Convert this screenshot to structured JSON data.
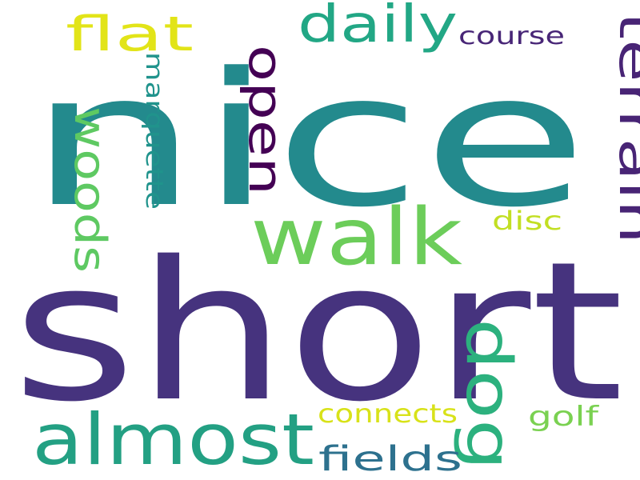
{
  "words": [
    {
      "id": "nice",
      "text": "nice",
      "color": "#238a8d",
      "vertical": false
    },
    {
      "id": "short",
      "text": "short",
      "color": "#46337e",
      "vertical": false
    },
    {
      "id": "walk",
      "text": "walk",
      "color": "#6ccd5a",
      "vertical": false
    },
    {
      "id": "almost",
      "text": "almost",
      "color": "#23a083",
      "vertical": false
    },
    {
      "id": "dog",
      "text": "dog",
      "color": "#2cb17e",
      "vertical": true
    },
    {
      "id": "terrain",
      "text": "terrain",
      "color": "#482475",
      "vertical": true
    },
    {
      "id": "open",
      "text": "open",
      "color": "#440154",
      "vertical": true
    },
    {
      "id": "woods",
      "text": "woods",
      "color": "#5ec962",
      "vertical": true
    },
    {
      "id": "daily",
      "text": "daily",
      "color": "#22a785",
      "vertical": false
    },
    {
      "id": "flat",
      "text": "flat",
      "color": "#e2e418",
      "vertical": false
    },
    {
      "id": "course",
      "text": "course",
      "color": "#482677",
      "vertical": false
    },
    {
      "id": "marquette",
      "text": "marquette",
      "color": "#20938c",
      "vertical": true
    },
    {
      "id": "fields",
      "text": "fields",
      "color": "#2d718e",
      "vertical": false
    },
    {
      "id": "connects",
      "text": "connects",
      "color": "#d8e219",
      "vertical": false
    },
    {
      "id": "golf",
      "text": "golf",
      "color": "#7ad151",
      "vertical": false
    },
    {
      "id": "disc",
      "text": "disc",
      "color": "#c2df23",
      "vertical": false
    }
  ]
}
